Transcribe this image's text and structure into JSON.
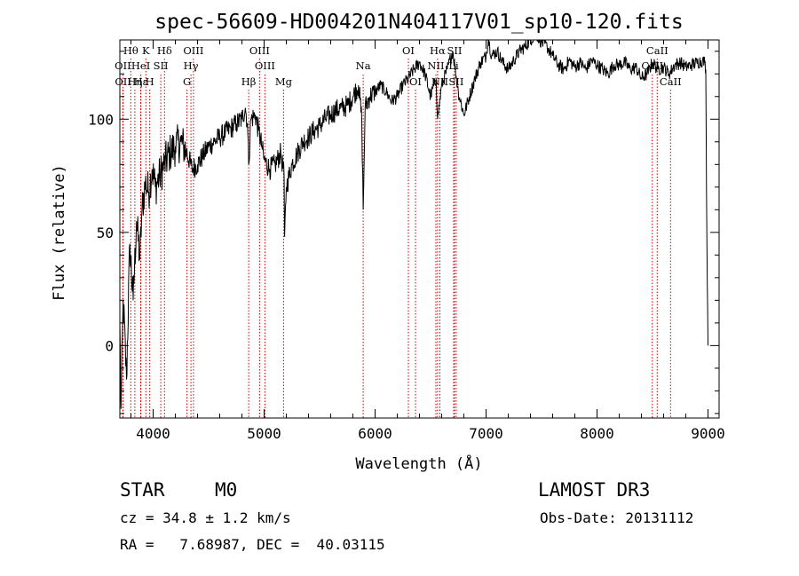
{
  "chart_data": {
    "type": "line",
    "title": "spec-56609-HD004201N404117V01_sp10-120.fits",
    "xlabel": "Wavelength (Å)",
    "ylabel": "Flux (relative)",
    "xlim": [
      3700,
      9100
    ],
    "ylim": [
      -32,
      135
    ],
    "x_ticks": [
      4000,
      5000,
      6000,
      7000,
      8000,
      9000
    ],
    "y_ticks": [
      0,
      50,
      100
    ],
    "series": [
      {
        "name": "flux",
        "x": [
          3700,
          3710,
          3730,
          3760,
          3790,
          3820,
          3850,
          3880,
          3900,
          3930,
          3960,
          3990,
          4020,
          4060,
          4100,
          4150,
          4200,
          4250,
          4300,
          4350,
          4400,
          4450,
          4500,
          4550,
          4600,
          4650,
          4700,
          4750,
          4800,
          4830,
          4850,
          4861,
          4880,
          4920,
          4950,
          4980,
          5000,
          5050,
          5100,
          5150,
          5180,
          5185,
          5200,
          5250,
          5300,
          5350,
          5400,
          5450,
          5500,
          5550,
          5600,
          5650,
          5700,
          5750,
          5800,
          5850,
          5880,
          5893,
          5910,
          5950,
          6000,
          6050,
          6100,
          6150,
          6200,
          6250,
          6300,
          6350,
          6400,
          6450,
          6500,
          6550,
          6563,
          6600,
          6650,
          6700,
          6750,
          6800,
          6850,
          6900,
          6950,
          7000,
          7020,
          7050,
          7100,
          7150,
          7200,
          7250,
          7300,
          7350,
          7400,
          7450,
          7500,
          7550,
          7600,
          7650,
          7700,
          7750,
          7800,
          7850,
          7900,
          7950,
          8000,
          8050,
          8100,
          8150,
          8200,
          8250,
          8300,
          8350,
          8400,
          8450,
          8500,
          8550,
          8600,
          8650,
          8700,
          8750,
          8800,
          8850,
          8900,
          8950,
          8970,
          8980,
          8990,
          9000
        ],
        "values": [
          10,
          -28,
          20,
          -15,
          45,
          20,
          55,
          38,
          60,
          72,
          68,
          78,
          70,
          75,
          80,
          85,
          88,
          90,
          86,
          78,
          80,
          84,
          88,
          90,
          92,
          94,
          96,
          98,
          100,
          105,
          98,
          80,
          100,
          102,
          95,
          88,
          82,
          78,
          80,
          85,
          75,
          48,
          70,
          80,
          85,
          90,
          92,
          95,
          97,
          100,
          102,
          104,
          105,
          106,
          110,
          115,
          100,
          60,
          105,
          110,
          112,
          115,
          112,
          108,
          110,
          115,
          118,
          122,
          125,
          120,
          110,
          118,
          100,
          115,
          122,
          130,
          112,
          102,
          110,
          118,
          125,
          128,
          136,
          128,
          130,
          125,
          122,
          126,
          130,
          132,
          135,
          138,
          134,
          132,
          128,
          124,
          122,
          126,
          123,
          125,
          122,
          126,
          124,
          122,
          120,
          124,
          124,
          125,
          122,
          123,
          118,
          120,
          125,
          122,
          123,
          120,
          124,
          125,
          123,
          124,
          125,
          126,
          125,
          122,
          45,
          0
        ]
      }
    ],
    "line_markers": [
      {
        "name": "Hθ",
        "wl": 3798,
        "row": 1
      },
      {
        "name": "OII",
        "wl": 3727,
        "row": 2
      },
      {
        "name": "OII",
        "wl": 3729,
        "row": 3
      },
      {
        "name": "K",
        "wl": 3934,
        "row": 1
      },
      {
        "name": "Hε",
        "wl": 3889,
        "row": 3
      },
      {
        "name": "Hη",
        "wl": 3835,
        "row": 3
      },
      {
        "name": "H",
        "wl": 3969,
        "row": 3
      },
      {
        "name": "HeI",
        "wl": 3889,
        "row": 2
      },
      {
        "name": "SII",
        "wl": 4069,
        "row": 2
      },
      {
        "name": "Hδ",
        "wl": 4102,
        "row": 1
      },
      {
        "name": "OIII",
        "wl": 4363,
        "row": 1
      },
      {
        "name": "Hγ",
        "wl": 4341,
        "row": 2
      },
      {
        "name": "G",
        "wl": 4305,
        "row": 3
      },
      {
        "name": "Hβ",
        "wl": 4861,
        "row": 3
      },
      {
        "name": "OIII",
        "wl": 4959,
        "row": 1
      },
      {
        "name": "OIII",
        "wl": 5007,
        "row": 2
      },
      {
        "name": "Mg",
        "wl": 5175,
        "row": 3
      },
      {
        "name": "Na",
        "wl": 5893,
        "row": 2
      },
      {
        "name": "OI",
        "wl": 6300,
        "row": 1
      },
      {
        "name": "OI",
        "wl": 6364,
        "row": 3
      },
      {
        "name": "Hα",
        "wl": 6563,
        "row": 1
      },
      {
        "name": "NII",
        "wl": 6548,
        "row": 2
      },
      {
        "name": "NII",
        "wl": 6584,
        "row": 3
      },
      {
        "name": "Li",
        "wl": 6708,
        "row": 2
      },
      {
        "name": "SII",
        "wl": 6716,
        "row": 1
      },
      {
        "name": "SII",
        "wl": 6731,
        "row": 3
      },
      {
        "name": "CaII",
        "wl": 8542,
        "row": 1
      },
      {
        "name": "CaII",
        "wl": 8498,
        "row": 2
      },
      {
        "name": "CaII",
        "wl": 8662,
        "row": 3
      }
    ]
  },
  "info": {
    "class_label": "STAR",
    "subclass": "M0",
    "survey": "LAMOST DR3",
    "cz_line": "cz = 34.8 ± 1.2 km/s",
    "obs_date": "Obs-Date: 20131112",
    "coords_line": "RA =   7.68987, DEC =  40.03115"
  },
  "colors": {
    "line_marker": "#cc0000",
    "spectrum": "#000000",
    "axes": "#000000"
  }
}
